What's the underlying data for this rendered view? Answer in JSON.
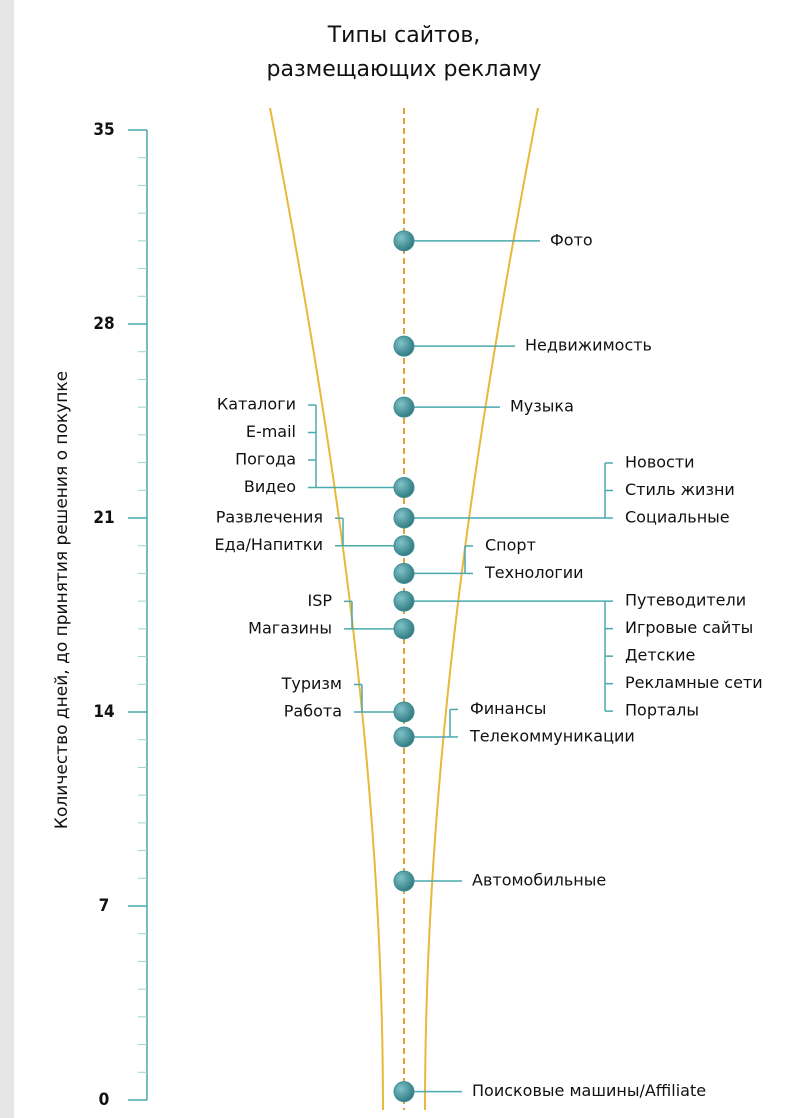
{
  "chart_data": {
    "type": "dot",
    "title": [
      "Типы сайтов,",
      "размещающих рекламу"
    ],
    "ylabel": "Количество дней, до принятия решения о покупке",
    "ylim": [
      0,
      35
    ],
    "yticks": [
      0,
      7,
      14,
      21,
      28,
      35
    ],
    "yminor": [
      1,
      2,
      3,
      4,
      5,
      6,
      8,
      9,
      10,
      11,
      12,
      13,
      15,
      16,
      17,
      18,
      19,
      20,
      22,
      23,
      24,
      25,
      26,
      27,
      29,
      30,
      31,
      32,
      33,
      34
    ],
    "color": "#3f8f97",
    "points": [
      {
        "value": 31,
        "labels": [
          "Фото"
        ]
      },
      {
        "value": 27.2,
        "labels": [
          "Недвижимость"
        ]
      },
      {
        "value": 25,
        "labels": [
          "Музыка"
        ]
      },
      {
        "value": 22.1,
        "labels": [
          "Каталоги",
          "E-mail",
          "Погода",
          "Видео"
        ]
      },
      {
        "value": 21,
        "labels": [
          "Новости",
          "Стиль жизни",
          "Социальные"
        ]
      },
      {
        "value": 20,
        "labels": [
          "Развлечения",
          "Еда/Напитки"
        ]
      },
      {
        "value": 19,
        "labels": [
          "Спорт",
          "Технологии"
        ]
      },
      {
        "value": 18,
        "labels": [
          "Путеводители",
          "Игровые сайты",
          "Детские",
          "Рекламные сети",
          "Порталы"
        ]
      },
      {
        "value": 17,
        "labels": [
          "ISP",
          "Магазины"
        ]
      },
      {
        "value": 14,
        "labels": [
          "Туризм",
          "Работа"
        ]
      },
      {
        "value": 13.1,
        "labels": [
          "Финансы",
          "Телекоммуникации"
        ]
      },
      {
        "value": 7.9,
        "labels": [
          "Автомобильные"
        ]
      },
      {
        "value": 0.3,
        "labels": [
          "Поисковые машины/Affiliate"
        ]
      }
    ]
  }
}
